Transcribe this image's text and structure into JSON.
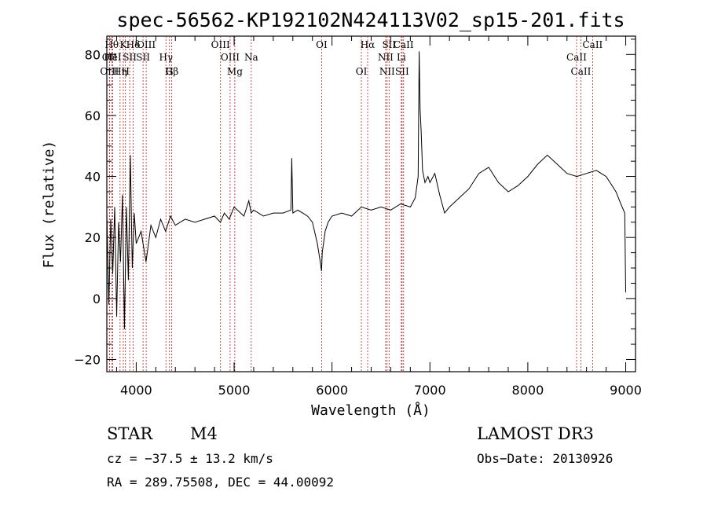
{
  "chart_data": {
    "type": "line",
    "title": "spec-56562-KP192102N424113V02_sp15-201.fits",
    "xlabel": "Wavelength (Å)",
    "ylabel": "Flux (relative)",
    "xlim": [
      3700,
      9100
    ],
    "ylim": [
      -24,
      86
    ],
    "xticks": [
      4000,
      5000,
      6000,
      7000,
      8000,
      9000
    ],
    "yticks": [
      -20,
      0,
      20,
      40,
      60,
      80
    ],
    "grid": false,
    "series": [
      {
        "name": "flux",
        "x": [
          3700,
          3720,
          3740,
          3760,
          3780,
          3800,
          3820,
          3840,
          3860,
          3880,
          3900,
          3920,
          3940,
          3960,
          3980,
          4000,
          4050,
          4100,
          4150,
          4200,
          4250,
          4300,
          4350,
          4400,
          4500,
          4600,
          4700,
          4800,
          4860,
          4900,
          4950,
          5000,
          5100,
          5150,
          5175,
          5200,
          5300,
          5400,
          5500,
          5580,
          5589,
          5600,
          5650,
          5700,
          5750,
          5800,
          5850,
          5880,
          5893,
          5900,
          5930,
          5960,
          6000,
          6100,
          6200,
          6300,
          6400,
          6500,
          6600,
          6700,
          6800,
          6850,
          6880,
          6890,
          6900,
          6910,
          6925,
          6950,
          6980,
          7000,
          7050,
          7100,
          7150,
          7200,
          7300,
          7400,
          7500,
          7600,
          7700,
          7800,
          7900,
          8000,
          8100,
          8200,
          8300,
          8400,
          8500,
          8600,
          8700,
          8800,
          8900,
          8950,
          8990,
          9000
        ],
        "y": [
          28,
          -2,
          26,
          8,
          30,
          -6,
          25,
          12,
          34,
          -10,
          30,
          6,
          47,
          10,
          28,
          18,
          22,
          12,
          24,
          20,
          26,
          22,
          27,
          24,
          26,
          25,
          26,
          27,
          25,
          28,
          26,
          30,
          27,
          32,
          28,
          29,
          27,
          28,
          28,
          29,
          46,
          28,
          29,
          28,
          27,
          25,
          18,
          12,
          9,
          15,
          22,
          25,
          27,
          28,
          27,
          30,
          29,
          30,
          29,
          31,
          30,
          33,
          40,
          81,
          62,
          55,
          42,
          38,
          40,
          38,
          41,
          34,
          28,
          30,
          33,
          36,
          41,
          43,
          38,
          35,
          37,
          40,
          44,
          47,
          44,
          41,
          40,
          41,
          42,
          40,
          35,
          31,
          28,
          2
        ]
      }
    ],
    "lines": [
      {
        "label": "OII",
        "x": 3727,
        "row": 2
      },
      {
        "label": "OIII",
        "x": 3727,
        "row": 3
      },
      {
        "label": "Hθ",
        "x": 3750,
        "row": 1
      },
      {
        "label": "HeI",
        "x": 3760,
        "row": 2
      },
      {
        "label": "Hη",
        "x": 3835,
        "row": 3
      },
      {
        "label": "K",
        "x": 3868,
        "row": 1
      },
      {
        "label": "H",
        "x": 3890,
        "row": 3
      },
      {
        "label": "SII",
        "x": 3934,
        "row": 2
      },
      {
        "label": "Hδ",
        "x": 3969,
        "row": 1
      },
      {
        "label": "SII",
        "x": 4070,
        "row": 2
      },
      {
        "label": "OIII",
        "x": 4102,
        "row": 1
      },
      {
        "label": "Hγ",
        "x": 4304,
        "row": 2
      },
      {
        "label": "G",
        "x": 4340,
        "row": 3
      },
      {
        "label": "Hβ",
        "x": 4363,
        "row": 3
      },
      {
        "label": "OIII",
        "x": 4861,
        "row": 1
      },
      {
        "label": "OIII",
        "x": 4959,
        "row": 2
      },
      {
        "label": "Mg",
        "x": 5007,
        "row": 3
      },
      {
        "label": "Na",
        "x": 5175,
        "row": 2
      },
      {
        "label": "OI",
        "x": 5894,
        "row": 1
      },
      {
        "label": "OI",
        "x": 6300,
        "row": 3
      },
      {
        "label": "Hα",
        "x": 6364,
        "row": 1
      },
      {
        "label": "NII",
        "x": 6548,
        "row": 2
      },
      {
        "label": "NII",
        "x": 6563,
        "row": 3
      },
      {
        "label": "SII",
        "x": 6583,
        "row": 1
      },
      {
        "label": "Li",
        "x": 6708,
        "row": 2
      },
      {
        "label": "SII",
        "x": 6716,
        "row": 3
      },
      {
        "label": "CaII",
        "x": 6731,
        "row": 1
      },
      {
        "label": "CaII",
        "x": 8498,
        "row": 2
      },
      {
        "label": "CaII",
        "x": 8542,
        "row": 3
      },
      {
        "label": "CaII",
        "x": 8662,
        "row": 1
      }
    ]
  },
  "info": {
    "class": "STAR",
    "subclass": "M4",
    "survey": "LAMOST DR3",
    "cz": "cz = −37.5 ± 13.2 km/s",
    "obs_date": "Obs−Date: 20130926",
    "radec": "RA = 289.75508, DEC =  44.00092"
  }
}
